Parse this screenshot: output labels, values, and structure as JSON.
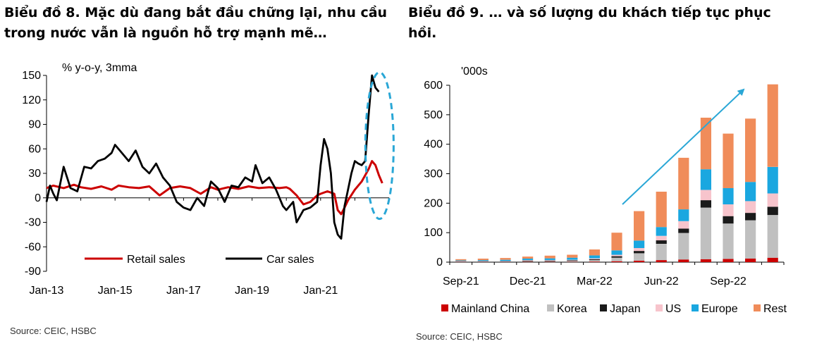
{
  "titles": {
    "left": "Biểu đồ 8. Mặc dù đang bắt đầu chững lại, nhu cầu trong nước vẫn là nguồn hỗ trợ mạnh mẽ…",
    "right": "Biểu đồ 9. … và số lượng du khách tiếp tục phục hồi."
  },
  "sources": {
    "left": "Source: CEIC, HSBC",
    "right": "Source: CEIC, HSBC"
  },
  "chart_data": [
    {
      "type": "line",
      "unit_label": "% y-o-y, 3mma",
      "ylim": [
        -90,
        150
      ],
      "yticks": [
        150,
        120,
        90,
        60,
        30,
        0,
        -30,
        -60,
        -90
      ],
      "xlim": [
        2013.0,
        2023.0
      ],
      "xticks": [
        {
          "label": "Jan-13",
          "x": 2013.0
        },
        {
          "label": "Jan-15",
          "x": 2015.0
        },
        {
          "label": "Jan-17",
          "x": 2017.0
        },
        {
          "label": "Jan-19",
          "x": 2019.0
        },
        {
          "label": "Jan-21",
          "x": 2021.0
        }
      ],
      "colors": {
        "Retail sales": "#cc0000",
        "Car sales": "#000000",
        "highlight": "#2aa7d6"
      },
      "series": [
        {
          "name": "Retail sales",
          "x": [
            2013.0,
            2013.2,
            2013.5,
            2013.8,
            2014.0,
            2014.3,
            2014.6,
            2014.9,
            2015.1,
            2015.4,
            2015.7,
            2016.0,
            2016.3,
            2016.6,
            2016.9,
            2017.2,
            2017.5,
            2017.8,
            2018.0,
            2018.3,
            2018.6,
            2018.9,
            2019.2,
            2019.5,
            2019.8,
            2020.0,
            2020.1,
            2020.3,
            2020.5,
            2020.7,
            2020.9,
            2021.0,
            2021.2,
            2021.4,
            2021.5,
            2021.6,
            2021.7,
            2021.8,
            2022.0,
            2022.2,
            2022.4,
            2022.5,
            2022.6,
            2022.7,
            2022.8
          ],
          "y": [
            12,
            15,
            12,
            16,
            13,
            11,
            14,
            10,
            15,
            13,
            12,
            14,
            3,
            12,
            14,
            12,
            5,
            13,
            10,
            13,
            11,
            14,
            12,
            13,
            12,
            13,
            11,
            3,
            -8,
            -5,
            3,
            5,
            8,
            5,
            -15,
            -20,
            -12,
            -3,
            10,
            20,
            35,
            45,
            40,
            28,
            18
          ]
        },
        {
          "name": "Car sales",
          "x": [
            2013.0,
            2013.1,
            2013.2,
            2013.3,
            2013.5,
            2013.7,
            2013.9,
            2014.1,
            2014.3,
            2014.5,
            2014.7,
            2014.9,
            2015.0,
            2015.2,
            2015.4,
            2015.6,
            2015.8,
            2016.0,
            2016.2,
            2016.4,
            2016.6,
            2016.8,
            2017.0,
            2017.2,
            2017.4,
            2017.6,
            2017.8,
            2018.0,
            2018.2,
            2018.4,
            2018.6,
            2018.8,
            2019.0,
            2019.1,
            2019.3,
            2019.5,
            2019.7,
            2019.9,
            2020.0,
            2020.2,
            2020.3,
            2020.5,
            2020.7,
            2020.9,
            2021.0,
            2021.1,
            2021.2,
            2021.3,
            2021.4,
            2021.5,
            2021.6,
            2021.7,
            2021.8,
            2021.9,
            2022.0,
            2022.1,
            2022.2,
            2022.3,
            2022.4,
            2022.5,
            2022.6,
            2022.7
          ],
          "y": [
            -5,
            15,
            5,
            -3,
            38,
            12,
            8,
            38,
            36,
            45,
            48,
            55,
            65,
            55,
            45,
            58,
            38,
            30,
            42,
            25,
            15,
            -5,
            -12,
            -15,
            0,
            -10,
            20,
            12,
            -5,
            15,
            13,
            25,
            20,
            40,
            18,
            25,
            10,
            -10,
            -15,
            -5,
            -30,
            -15,
            -12,
            -5,
            40,
            72,
            60,
            30,
            -30,
            -45,
            -50,
            -10,
            10,
            30,
            45,
            42,
            40,
            45,
            100,
            150,
            135,
            130
          ]
        }
      ],
      "annotation": "dashed ellipse highlighting 2022 peak"
    },
    {
      "type": "bar",
      "stacked": true,
      "unit_label": "'000s",
      "ylim": [
        0,
        600
      ],
      "yticks": [
        0,
        100,
        200,
        300,
        400,
        500,
        600
      ],
      "categories": [
        "Sep-21",
        "Oct-21",
        "Nov-21",
        "Dec-21",
        "Jan-22",
        "Feb-22",
        "Mar-22",
        "Apr-22",
        "May-22",
        "Jun-22",
        "Jul-22",
        "Aug-22",
        "Sep-22",
        "Oct-22",
        "Nov-22"
      ],
      "xtick_labels": [
        {
          "label": "Sep-21",
          "index": 0
        },
        {
          "label": "Dec-21",
          "index": 3
        },
        {
          "label": "Mar-22",
          "index": 6
        },
        {
          "label": "Jun-22",
          "index": 9
        },
        {
          "label": "Sep-22",
          "index": 12
        }
      ],
      "series": [
        {
          "name": "Mainland China",
          "color": "#cc0000",
          "values": [
            1,
            1,
            1,
            1,
            1,
            1,
            2,
            3,
            5,
            7,
            9,
            10,
            11,
            12,
            15
          ]
        },
        {
          "name": "Korea",
          "color": "#c0c0c0",
          "values": [
            1,
            1,
            1,
            2,
            2,
            3,
            5,
            12,
            25,
            55,
            90,
            175,
            120,
            130,
            145
          ]
        },
        {
          "name": "Japan",
          "color": "#1a1a1a",
          "values": [
            1,
            1,
            1,
            2,
            2,
            2,
            3,
            5,
            8,
            12,
            15,
            25,
            25,
            25,
            28
          ]
        },
        {
          "name": "US",
          "color": "#f7c4cc",
          "values": [
            1,
            1,
            1,
            2,
            2,
            2,
            3,
            5,
            10,
            15,
            25,
            35,
            40,
            40,
            45
          ]
        },
        {
          "name": "Europe",
          "color": "#1aa7e0",
          "values": [
            2,
            3,
            4,
            5,
            6,
            7,
            10,
            15,
            25,
            30,
            40,
            70,
            55,
            65,
            90
          ]
        },
        {
          "name": "Rest",
          "color": "#f08c5a",
          "values": [
            4,
            5,
            6,
            7,
            9,
            10,
            20,
            60,
            100,
            120,
            175,
            175,
            185,
            215,
            280
          ]
        }
      ],
      "annotation": "upward trend arrow"
    }
  ]
}
